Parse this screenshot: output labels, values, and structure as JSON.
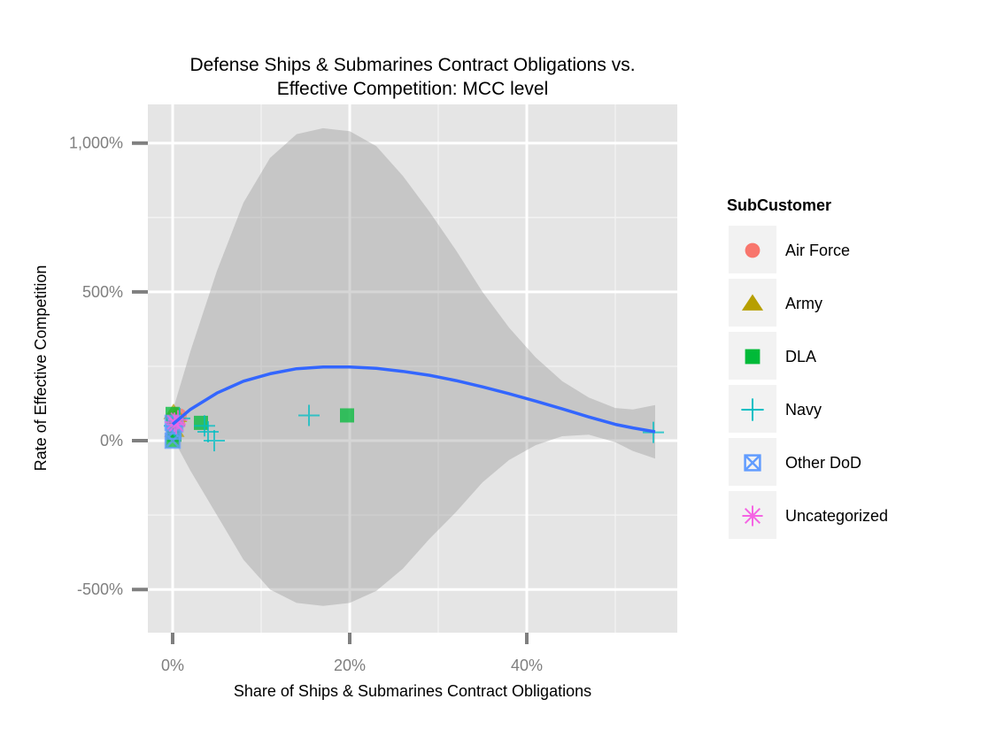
{
  "chart_data": {
    "type": "scatter",
    "title_lines": [
      "Defense Ships & Submarines Contract Obligations vs.",
      "Effective Competition: MCC level"
    ],
    "xlabel": "Share of Ships & Submarines Contract Obligations",
    "ylabel": "Rate of Effective Competition",
    "xlim": [
      -0.028,
      0.57
    ],
    "ylim": [
      -6.45,
      11.3
    ],
    "x_ticks": [
      {
        "value": 0.0,
        "label": "0%"
      },
      {
        "value": 0.2,
        "label": "20%"
      },
      {
        "value": 0.4,
        "label": "40%"
      }
    ],
    "x_minor": [
      0.1,
      0.3,
      0.5
    ],
    "y_ticks": [
      {
        "value": -5,
        "label": "-500%"
      },
      {
        "value": 0,
        "label": "0%"
      },
      {
        "value": 5,
        "label": "500%"
      },
      {
        "value": 10,
        "label": "1,000%"
      }
    ],
    "y_minor": [
      -2.5,
      2.5,
      7.5
    ],
    "grid": true,
    "legend": {
      "title": "SubCustomer",
      "position": "right",
      "entries": [
        {
          "name": "Air Force",
          "shape": "circle",
          "color": "#F8766D"
        },
        {
          "name": "Army",
          "shape": "triangle",
          "color": "#B79F00"
        },
        {
          "name": "DLA",
          "shape": "square",
          "color": "#00BA38"
        },
        {
          "name": "Navy",
          "shape": "plus",
          "color": "#00BFC4"
        },
        {
          "name": "Other DoD",
          "shape": "boxed-x",
          "color": "#619CFF"
        },
        {
          "name": "Uncategorized",
          "shape": "asterisk",
          "color": "#F564E3"
        }
      ]
    },
    "series": [
      {
        "name": "Air Force",
        "points": [
          [
            0.004,
            0.75
          ],
          [
            0.002,
            0.55
          ],
          [
            0.006,
            0.6
          ],
          [
            0.008,
            0.85
          ]
        ]
      },
      {
        "name": "Army",
        "points": [
          [
            0.001,
            0.95
          ],
          [
            0.003,
            0.7
          ],
          [
            0.005,
            0.85
          ],
          [
            0.002,
            0.35
          ]
        ]
      },
      {
        "name": "DLA",
        "points": [
          [
            0.0,
            0.0
          ],
          [
            0.001,
            0.5
          ],
          [
            0.002,
            0.2
          ],
          [
            0.032,
            0.6
          ],
          [
            0.197,
            0.85
          ],
          [
            0.0,
            0.9
          ]
        ]
      },
      {
        "name": "Navy",
        "points": [
          [
            0.002,
            0.5
          ],
          [
            0.008,
            0.75
          ],
          [
            0.04,
            0.3
          ],
          [
            0.047,
            0.0
          ],
          [
            0.154,
            0.85
          ],
          [
            0.543,
            0.28
          ],
          [
            0.036,
            0.5
          ]
        ]
      },
      {
        "name": "Other DoD",
        "points": [
          [
            0.0,
            0.0
          ],
          [
            0.001,
            0.3
          ],
          [
            0.003,
            0.55
          ],
          [
            0.0,
            0.6
          ]
        ]
      },
      {
        "name": "Uncategorized",
        "points": [
          [
            0.006,
            0.7
          ],
          [
            0.004,
            0.55
          ],
          [
            0.002,
            0.62
          ]
        ]
      }
    ],
    "smooth": {
      "color": "#3366FF",
      "x": [
        0.0,
        0.02,
        0.05,
        0.08,
        0.11,
        0.14,
        0.17,
        0.2,
        0.23,
        0.26,
        0.29,
        0.32,
        0.35,
        0.38,
        0.41,
        0.44,
        0.47,
        0.5,
        0.52,
        0.545
      ],
      "y": [
        0.55,
        1.05,
        1.6,
        2.0,
        2.25,
        2.42,
        2.48,
        2.48,
        2.43,
        2.33,
        2.2,
        2.02,
        1.81,
        1.58,
        1.33,
        1.07,
        0.8,
        0.55,
        0.43,
        0.3
      ],
      "upper": [
        1.0,
        3.0,
        5.7,
        8.0,
        9.5,
        10.3,
        10.5,
        10.4,
        9.9,
        8.9,
        7.7,
        6.4,
        5.0,
        3.8,
        2.8,
        2.0,
        1.45,
        1.1,
        1.05,
        1.2
      ],
      "lower": [
        0.1,
        -1.0,
        -2.5,
        -4.0,
        -5.0,
        -5.45,
        -5.55,
        -5.45,
        -5.05,
        -4.3,
        -3.3,
        -2.4,
        -1.4,
        -0.65,
        -0.15,
        0.15,
        0.2,
        -0.05,
        -0.35,
        -0.6
      ]
    }
  }
}
